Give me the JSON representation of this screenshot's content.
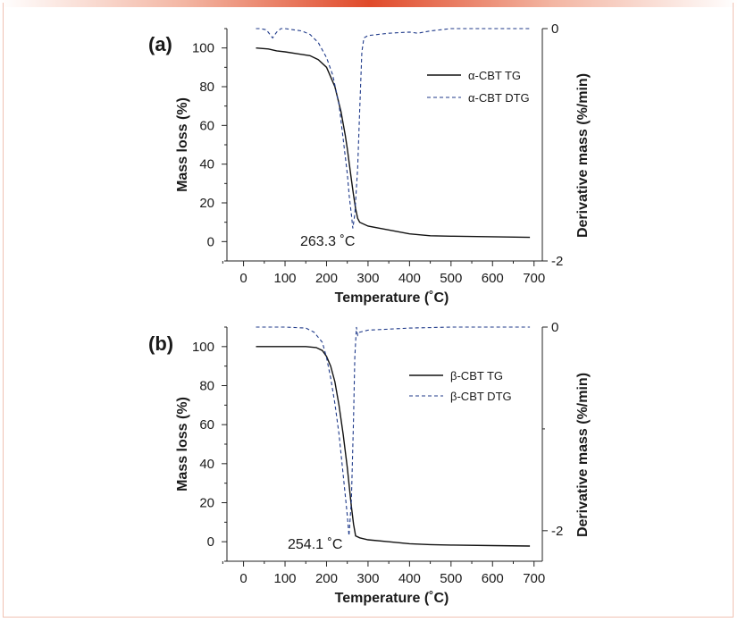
{
  "chart_data": [
    {
      "type": "line",
      "panel_label": "(a)",
      "xlabel": "Temperature (˚C)",
      "ylabel": "Mass loss (%)",
      "y2label": "Derivative mass (%/min)",
      "xlim": [
        -40,
        720
      ],
      "ylim": [
        -10,
        110
      ],
      "y2lim": [
        -2,
        0
      ],
      "xticks": [
        "0",
        "100",
        "200",
        "300",
        "400",
        "500",
        "600",
        "700"
      ],
      "yticks": [
        "0",
        "20",
        "40",
        "60",
        "80",
        "100"
      ],
      "y2ticks": [
        "0",
        "-2"
      ],
      "annotation": "263.3 ˚C",
      "legend_position": "top-right",
      "series": [
        {
          "name": "α-CBT TG",
          "axis": "left",
          "style": "solid",
          "color": "#111111",
          "x": [
            30,
            60,
            80,
            100,
            130,
            160,
            180,
            200,
            220,
            235,
            245,
            250,
            255,
            260,
            265,
            270,
            275,
            280,
            300,
            350,
            400,
            450,
            500,
            600,
            690
          ],
          "y": [
            100,
            99.5,
            98.5,
            98,
            97,
            96,
            94,
            90,
            80,
            67,
            55,
            48,
            40,
            32,
            24,
            17,
            12,
            10,
            8,
            6,
            4,
            3,
            2.8,
            2.5,
            2.2
          ]
        },
        {
          "name": "α-CBT DTG",
          "axis": "right",
          "style": "dashed",
          "color": "#1f3a8a",
          "x": [
            30,
            40,
            55,
            70,
            80,
            90,
            100,
            120,
            140,
            160,
            180,
            200,
            215,
            230,
            240,
            250,
            255,
            260,
            263.3,
            268,
            275,
            280,
            285,
            290,
            300,
            350,
            400,
            420,
            450,
            500,
            600,
            690
          ],
          "y": [
            0,
            0,
            -0.01,
            -0.08,
            -0.03,
            0,
            0,
            -0.01,
            -0.02,
            -0.05,
            -0.12,
            -0.25,
            -0.4,
            -0.65,
            -0.95,
            -1.25,
            -1.45,
            -1.6,
            -1.72,
            -1.6,
            -1.2,
            -0.7,
            -0.2,
            -0.08,
            -0.06,
            -0.04,
            -0.03,
            -0.04,
            -0.02,
            0,
            0,
            0
          ]
        }
      ]
    },
    {
      "type": "line",
      "panel_label": "(b)",
      "xlabel": "Temperature (˚C)",
      "ylabel": "Mass loss (%)",
      "y2label": "Derivative mass (%/min)",
      "xlim": [
        -40,
        720
      ],
      "ylim": [
        -10,
        110
      ],
      "y2lim": [
        -2.3,
        0
      ],
      "xticks": [
        "0",
        "100",
        "200",
        "300",
        "400",
        "500",
        "600",
        "700"
      ],
      "yticks": [
        "0",
        "20",
        "40",
        "60",
        "80",
        "100"
      ],
      "y2ticks": [
        "0",
        "-2"
      ],
      "annotation": "254.1 ˚C",
      "legend_position": "top-right",
      "series": [
        {
          "name": "β-CBT TG",
          "axis": "left",
          "style": "solid",
          "color": "#111111",
          "x": [
            30,
            100,
            150,
            175,
            190,
            200,
            210,
            220,
            230,
            240,
            250,
            255,
            260,
            265,
            270,
            280,
            300,
            350,
            400,
            450,
            500,
            600,
            690
          ],
          "y": [
            100,
            100,
            100,
            99.5,
            98,
            95,
            90,
            82,
            70,
            55,
            38,
            28,
            18,
            9,
            3,
            2,
            1,
            0,
            -1,
            -1.5,
            -1.7,
            -2,
            -2.2
          ]
        },
        {
          "name": "β-CBT DTG",
          "axis": "right",
          "style": "dashed",
          "color": "#1f3a8a",
          "x": [
            30,
            100,
            150,
            170,
            190,
            200,
            210,
            220,
            230,
            240,
            250,
            254.1,
            260,
            265,
            268,
            272,
            275,
            280,
            300,
            350,
            400,
            500,
            600,
            690
          ],
          "y": [
            0,
            0,
            -0.01,
            -0.05,
            -0.15,
            -0.3,
            -0.5,
            -0.75,
            -1.05,
            -1.45,
            -1.85,
            -2.05,
            -1.7,
            -0.9,
            -0.3,
            0,
            -0.08,
            -0.05,
            -0.03,
            -0.02,
            -0.01,
            0,
            0,
            0
          ]
        }
      ]
    }
  ]
}
